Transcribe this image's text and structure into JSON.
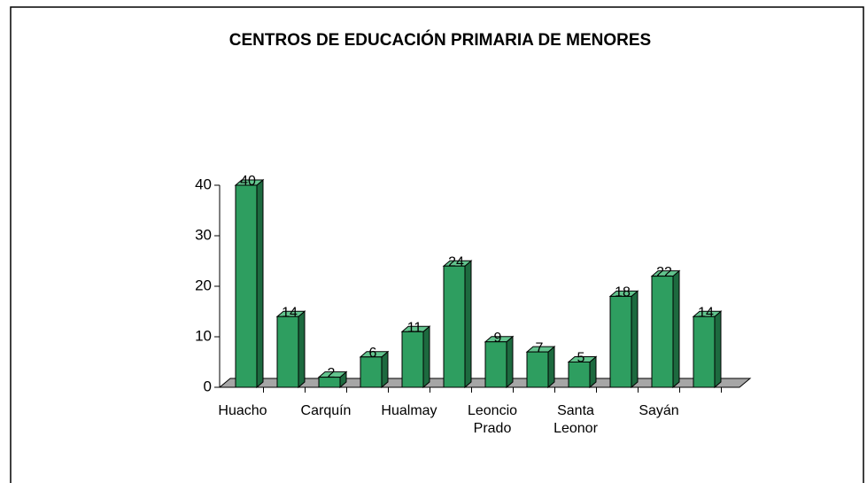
{
  "chart_data": {
    "type": "bar",
    "title": "CENTROS DE EDUCACIÓN PRIMARIA DE MENORES",
    "categories": [
      "Huacho",
      null,
      "Carquín",
      null,
      "Hualmay",
      null,
      "Leoncio Prado",
      null,
      "Santa Leonor",
      null,
      "Sayán",
      null
    ],
    "values": [
      40,
      14,
      2,
      6,
      11,
      24,
      9,
      7,
      5,
      18,
      22,
      14
    ],
    "color": "#2e9e60",
    "ylim": [
      0,
      40
    ],
    "yticks": [
      0,
      10,
      20,
      30,
      40
    ],
    "grid": false
  }
}
